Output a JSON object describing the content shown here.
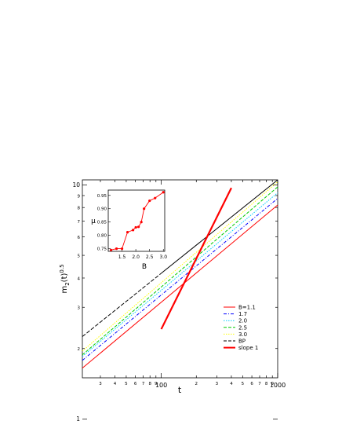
{
  "chart_data": [
    {
      "type": "line",
      "xscale": "log",
      "yscale": "log",
      "xlabel": "t",
      "ylabel_main": "m",
      "ylabel_sub": "2",
      "ylabel_mid": "(t)",
      "ylabel_sup": "0.5",
      "xlim": [
        21,
        1000
      ],
      "ylim": [
        1.5,
        10.5
      ],
      "x_tick_labels": [
        {
          "value": 30,
          "label": "3"
        },
        {
          "value": 40,
          "label": "4"
        },
        {
          "value": 50,
          "label": "5"
        },
        {
          "value": 60,
          "label": "6"
        },
        {
          "value": 70,
          "label": "7"
        },
        {
          "value": 80,
          "label": "8"
        },
        {
          "value": 90,
          "label": "9"
        },
        {
          "value": 100,
          "label": "100"
        },
        {
          "value": 200,
          "label": "2"
        },
        {
          "value": 300,
          "label": "3"
        },
        {
          "value": 400,
          "label": "4"
        },
        {
          "value": 500,
          "label": "5"
        },
        {
          "value": 600,
          "label": "6"
        },
        {
          "value": 700,
          "label": "7"
        },
        {
          "value": 800,
          "label": "8"
        },
        {
          "value": 900,
          "label": "9"
        },
        {
          "value": 1000,
          "label": "1000"
        }
      ],
      "y_tick_labels": [
        {
          "value": 2,
          "label": "2"
        },
        {
          "value": 3,
          "label": "3"
        },
        {
          "value": 4,
          "label": "4"
        },
        {
          "value": 5,
          "label": "5"
        },
        {
          "value": 6,
          "label": "6"
        },
        {
          "value": 7,
          "label": "7"
        },
        {
          "value": 8,
          "label": "8"
        },
        {
          "value": 9,
          "label": "9"
        },
        {
          "value": 10,
          "label": "10"
        },
        {
          "value": 1,
          "label": "1"
        }
      ],
      "legend_position": "bottom-right",
      "series": [
        {
          "name": "B=1.1",
          "color": "#ff0000",
          "dash": "solid",
          "x": [
            21,
            1000
          ],
          "y": [
            1.65,
            8.2
          ]
        },
        {
          "name": "1.7",
          "color": "#0000ff",
          "dash": "dashdot",
          "x": [
            21,
            1000
          ],
          "y": [
            1.78,
            8.75
          ]
        },
        {
          "name": "2.0",
          "color": "#00ccff",
          "dash": "dotted",
          "x": [
            21,
            1000
          ],
          "y": [
            1.85,
            9.25
          ]
        },
        {
          "name": "2.5",
          "color": "#00cc00",
          "dash": "dashed",
          "x": [
            21,
            1000
          ],
          "y": [
            1.88,
            9.8
          ]
        },
        {
          "name": "3.0",
          "color": "#ffff00",
          "dash": "dotted",
          "x": [
            21,
            1000
          ],
          "y": [
            1.95,
            10.3
          ]
        },
        {
          "name": "BP",
          "color": "#000000",
          "dash": "dashed_then_solid",
          "x": [
            21,
            1000
          ],
          "y": [
            2.25,
            10.5
          ]
        },
        {
          "name": "slope 1",
          "color": "#ff0000",
          "dash": "thick",
          "x": [
            100,
            400
          ],
          "y": [
            2.42,
            9.7
          ]
        }
      ]
    },
    {
      "type": "line",
      "inset": true,
      "xlabel": "B",
      "ylabel": "μ",
      "xlim": [
        1.0,
        3.05
      ],
      "ylim": [
        0.74,
        0.97
      ],
      "x_tick_labels": [
        "1.5",
        "2.0",
        "2.5",
        "3.0"
      ],
      "x_tick_values": [
        1.5,
        2.0,
        2.5,
        3.0
      ],
      "y_tick_labels": [
        "0.75",
        "0.80",
        "0.85",
        "0.90",
        "0.95"
      ],
      "y_tick_values": [
        0.75,
        0.8,
        0.85,
        0.9,
        0.95
      ],
      "color": "#ff0000",
      "x": [
        1.1,
        1.3,
        1.5,
        1.7,
        1.9,
        2.0,
        2.1,
        2.2,
        2.3,
        2.5,
        2.7,
        3.0
      ],
      "y": [
        0.745,
        0.75,
        0.75,
        0.812,
        0.82,
        0.83,
        0.832,
        0.85,
        0.9,
        0.93,
        0.94,
        0.962
      ]
    }
  ]
}
